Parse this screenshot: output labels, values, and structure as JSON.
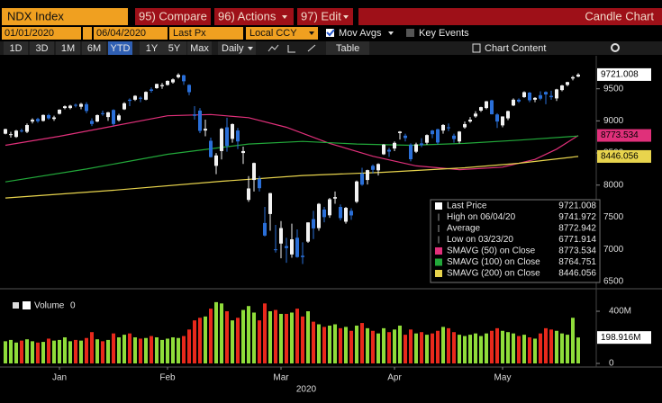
{
  "toolbar": {
    "ticker": "NDX Index",
    "compare": "95) Compare",
    "actions": "96) Actions",
    "edit": "97) Edit",
    "chart_name": "Candle Chart",
    "start_date": "01/01/2020",
    "end_date": "06/04/2020",
    "field": "Last Px",
    "currency": "Local CCY",
    "mov_avgs": "Mov Avgs",
    "key_events": "Key Events",
    "ranges": [
      "1D",
      "3D",
      "1M",
      "6M",
      "YTD",
      "1Y",
      "5Y",
      "Max"
    ],
    "selected_range": "YTD",
    "period": "Daily",
    "table": "Table",
    "chart_content": "Chart Content"
  },
  "chart_data": {
    "type": "candlestick",
    "open": [
      8800,
      8780,
      8750,
      8850,
      8830,
      8990,
      9030,
      9000,
      9090,
      9030,
      9110,
      9200,
      9200,
      9250,
      9220,
      9260,
      9000,
      8990,
      9120,
      9060,
      9170,
      9010,
      9180,
      9330,
      9330,
      9360,
      9330,
      9490,
      9510,
      9540,
      9560,
      9600,
      9680,
      9710,
      9560,
      9100,
      9160,
      8850,
      8690,
      8300,
      8530,
      8900,
      8720,
      8850,
      8500,
      7770,
      8080,
      8100,
      7410,
      7550,
      7000,
      7090,
      7050,
      6920,
      7180,
      6900,
      7120,
      7470,
      7330,
      7620,
      7530,
      7790,
      7660,
      7430,
      7600,
      7740,
      8180,
      8080,
      8300,
      8230,
      8480,
      8550,
      8570,
      8810,
      8770,
      8630,
      8520,
      8650,
      8660,
      8850,
      8870,
      8850,
      8900,
      8770,
      8680,
      8900,
      8990,
      9070,
      9160,
      9200,
      9320,
      9100,
      8930,
      9040,
      9240,
      9330,
      9370,
      9440,
      9330,
      9400,
      9450,
      9390,
      9350,
      9480,
      9560,
      9660,
      9690
    ],
    "high": [
      8880,
      8830,
      8860,
      8880,
      8960,
      9040,
      9050,
      9100,
      9110,
      9080,
      9180,
      9240,
      9250,
      9270,
      9280,
      9290,
      9040,
      9100,
      9160,
      9140,
      9180,
      9110,
      9290,
      9350,
      9400,
      9380,
      9460,
      9520,
      9580,
      9590,
      9630,
      9660,
      9740,
      9720,
      9570,
      9230,
      9200,
      9020,
      8740,
      8500,
      8890,
      9050,
      8960,
      8890,
      8600,
      8140,
      8350,
      8140,
      7660,
      7880,
      7380,
      7440,
      7180,
      7400,
      7310,
      7110,
      7420,
      7600,
      7720,
      7660,
      7800,
      7900,
      7700,
      7660,
      7640,
      8070,
      8270,
      8240,
      8320,
      8340,
      8640,
      8580,
      8680,
      8840,
      8800,
      8650,
      8660,
      8730,
      8790,
      8860,
      8880,
      8950,
      8960,
      8800,
      8840,
      8990,
      9060,
      9150,
      9220,
      9310,
      9330,
      9120,
      9070,
      9160,
      9350,
      9350,
      9460,
      9450,
      9370,
      9460,
      9460,
      9470,
      9500,
      9560,
      9610,
      9700,
      9741.972
    ],
    "low": [
      8790,
      8740,
      8735,
      8820,
      8810,
      8960,
      8970,
      8990,
      9020,
      9000,
      9100,
      9180,
      9180,
      9210,
      9180,
      9120,
      8920,
      8980,
      9080,
      9000,
      8920,
      8990,
      9170,
      9230,
      9310,
      9290,
      9320,
      9440,
      9500,
      9500,
      9550,
      9580,
      9660,
      9560,
      9400,
      9020,
      8810,
      8760,
      8430,
      8170,
      8400,
      8520,
      8660,
      8560,
      8330,
      7740,
      7900,
      7900,
      7200,
      7290,
      6950,
      6860,
      6790,
      6870,
      6870,
      6771.914,
      7100,
      7160,
      7290,
      7420,
      7490,
      7710,
      7450,
      7400,
      7460,
      7720,
      7990,
      8010,
      8180,
      8150,
      8470,
      8440,
      8530,
      8710,
      8680,
      8370,
      8500,
      8590,
      8630,
      8730,
      8630,
      8800,
      8840,
      8660,
      8650,
      8880,
      8970,
      9050,
      9140,
      9180,
      9100,
      8890,
      8900,
      9010,
      9230,
      9280,
      9360,
      9290,
      9290,
      9320,
      9260,
      9330,
      9310,
      9460,
      9540,
      9630,
      9680
    ],
    "close": [
      8872,
      8793,
      8848,
      8846,
      8935,
      9018,
      8995,
      9092,
      9040,
      9054,
      9175,
      9227,
      9237,
      9240,
      9264,
      9154,
      8952,
      9090,
      9113,
      9133,
      8952,
      9085,
      9274,
      9312,
      9390,
      9347,
      9451,
      9468,
      9575,
      9558,
      9623,
      9646,
      9718,
      9617,
      9447,
      9079,
      8844,
      8877,
      8436,
      8462,
      8877,
      8610,
      8950,
      8680,
      8530,
      7948,
      8344,
      7952,
      7214,
      7875,
      6994,
      7331,
      7020,
      7156,
      6880,
      6879,
      7419,
      7326,
      7708,
      7502,
      7780,
      7813,
      7486,
      7646,
      7528,
      8057,
      8007,
      8233,
      8238,
      8329,
      8631,
      8522,
      8658,
      8833,
      8733,
      8403,
      8635,
      8623,
      8779,
      8793,
      8663,
      8936,
      8889,
      8718,
      8834,
      8950,
      9019,
      9113,
      9214,
      9305,
      9103,
      8990,
      9069,
      9152,
      9330,
      9302,
      9447,
      9321,
      9358,
      9346,
      9412,
      9369,
      9490,
      9552,
      9604,
      9681,
      9721.008
    ],
    "up_color": "#f2f2f2",
    "down_color": "#2a6fd8",
    "ylim": [
      6400,
      10000
    ],
    "yticks": [
      6500,
      7000,
      7500,
      8000,
      8500,
      9000,
      9500
    ],
    "xlim": [
      -1,
      109
    ],
    "xticks": [
      {
        "value": 10,
        "label": "Jan"
      },
      {
        "value": 30,
        "label": "Feb"
      },
      {
        "value": 51,
        "label": "Mar"
      },
      {
        "value": 72,
        "label": "Apr"
      },
      {
        "value": 92,
        "label": "May"
      }
    ],
    "xlabel": "2020",
    "moving_averages": [
      {
        "name": "SMAVG (50)  on Close",
        "color": "#e0307a",
        "x": [
          0,
          10,
          20,
          30,
          38,
          45,
          52,
          60,
          68,
          76,
          84,
          92,
          98,
          102,
          106
        ],
        "values": [
          8620,
          8760,
          8920,
          9080,
          9100,
          9050,
          8900,
          8650,
          8450,
          8300,
          8240,
          8280,
          8400,
          8560,
          8773.534
        ]
      },
      {
        "name": "SMAVG (100)  on Close",
        "color": "#22a83a",
        "x": [
          0,
          15,
          30,
          45,
          55,
          65,
          75,
          85,
          95,
          106
        ],
        "values": [
          8050,
          8250,
          8480,
          8640,
          8680,
          8640,
          8620,
          8650,
          8700,
          8764.751
        ]
      },
      {
        "name": "SMAVG (200)  on Close",
        "color": "#e8d44d",
        "x": [
          0,
          20,
          40,
          55,
          70,
          85,
          95,
          106
        ],
        "values": [
          7800,
          7920,
          8060,
          8150,
          8200,
          8270,
          8340,
          8446.056
        ]
      }
    ],
    "summary": {
      "last_label": "Last Price",
      "high_label": "High on 06/04/20",
      "average_label": "Average",
      "average": 8772.942,
      "low_label": "Low on 03/23/20"
    },
    "volume": {
      "title": "Volume",
      "readout": 0,
      "up_color": "#8fdc3a",
      "down_color": "#e8291c",
      "values": [
        170,
        180,
        160,
        175,
        185,
        170,
        160,
        165,
        190,
        175,
        180,
        200,
        170,
        180,
        175,
        195,
        240,
        185,
        170,
        180,
        230,
        200,
        220,
        230,
        200,
        190,
        195,
        210,
        200,
        180,
        190,
        200,
        195,
        210,
        260,
        330,
        350,
        360,
        420,
        470,
        460,
        400,
        330,
        350,
        410,
        440,
        390,
        330,
        460,
        400,
        410,
        380,
        380,
        390,
        420,
        360,
        400,
        320,
        300,
        280,
        290,
        300,
        270,
        280,
        250,
        290,
        310,
        270,
        250,
        230,
        270,
        240,
        260,
        290,
        220,
        260,
        230,
        240,
        220,
        230,
        250,
        280,
        270,
        240,
        220,
        210,
        220,
        230,
        210,
        230,
        250,
        270,
        250,
        240,
        230,
        210,
        220,
        200,
        190,
        230,
        270,
        260,
        250,
        230,
        220,
        350,
        198.916
      ],
      "last_label": "198.916M",
      "ylim": [
        0,
        545
      ],
      "yticks": [
        {
          "value": 0,
          "label": "0"
        },
        {
          "value": 400,
          "label": "400M"
        }
      ]
    }
  }
}
